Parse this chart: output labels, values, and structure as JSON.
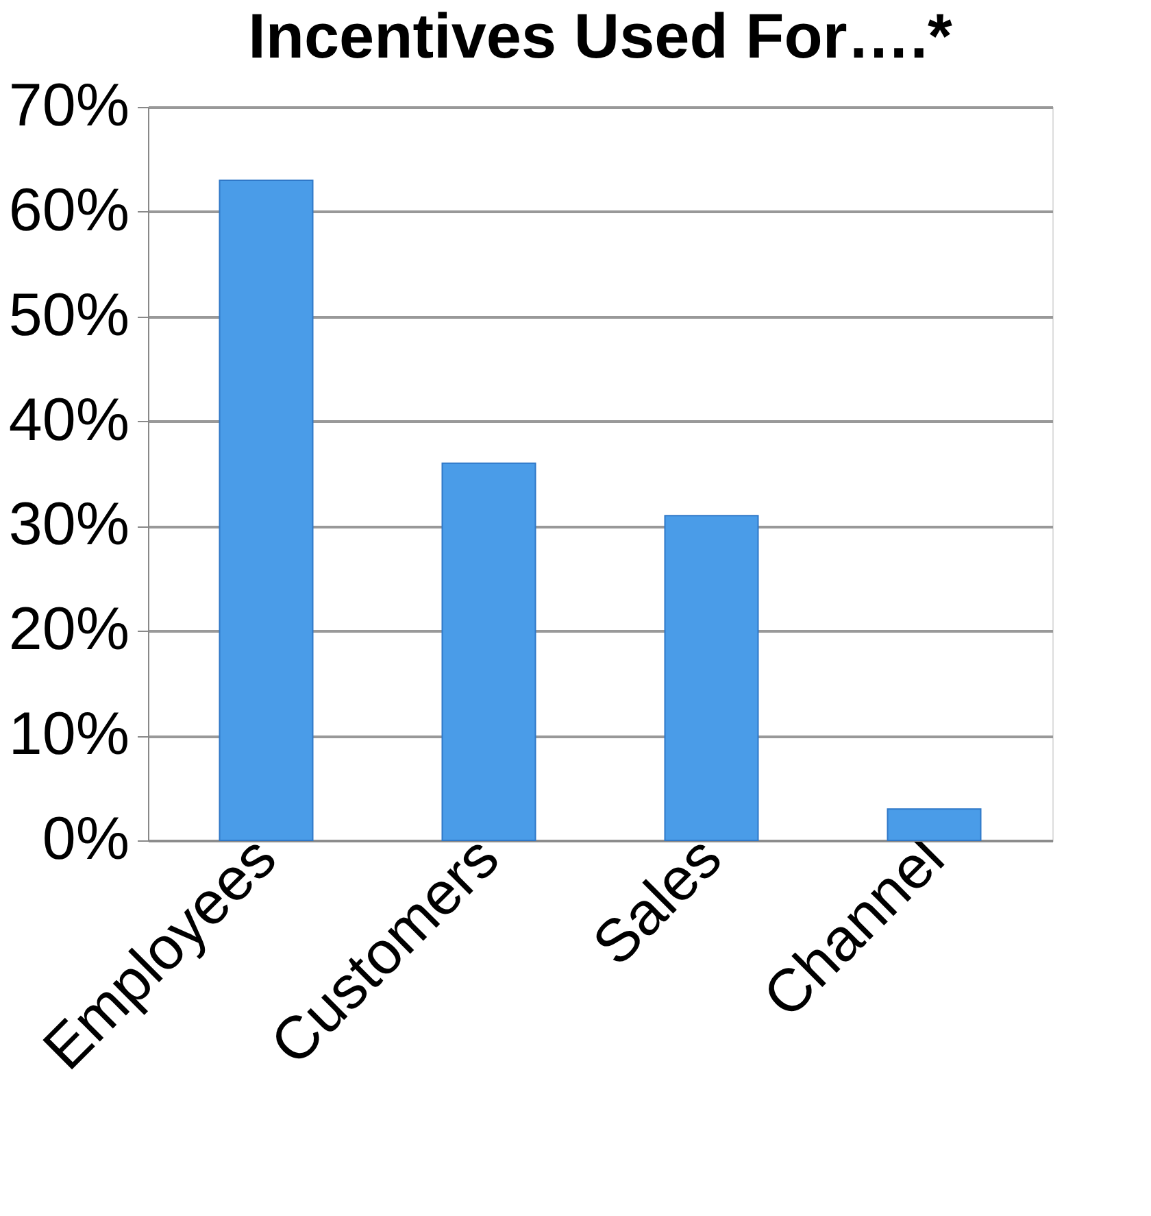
{
  "chart_data": {
    "type": "bar",
    "title": "Incentives Used For….*",
    "categories": [
      "Employees",
      "Customers",
      "Sales",
      "Channel"
    ],
    "values": [
      63,
      36,
      31,
      3
    ],
    "color": "#4a9ce8",
    "ylim": [
      0,
      70
    ],
    "yticks": [
      {
        "value": 0,
        "label": "0%"
      },
      {
        "value": 10,
        "label": "10%"
      },
      {
        "value": 20,
        "label": "20%"
      },
      {
        "value": 30,
        "label": "30%"
      },
      {
        "value": 40,
        "label": "40%"
      },
      {
        "value": 50,
        "label": "50%"
      },
      {
        "value": 60,
        "label": "60%"
      },
      {
        "value": 70,
        "label": "70%"
      }
    ],
    "grid": "y"
  }
}
